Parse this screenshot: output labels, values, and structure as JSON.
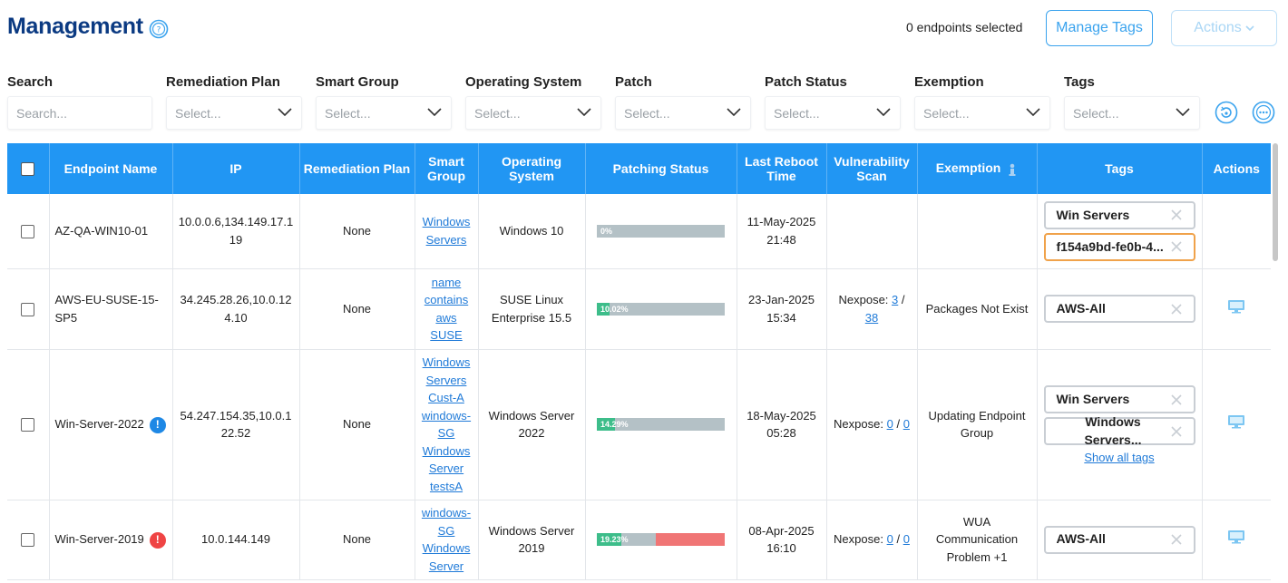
{
  "header": {
    "title": "Management",
    "selected_count": "0 endpoints selected",
    "manage_tags": "Manage Tags",
    "actions": "Actions"
  },
  "filters": [
    {
      "label": "Search",
      "placeholder": "Search..."
    },
    {
      "label": "Remediation Plan",
      "placeholder": "Select..."
    },
    {
      "label": "Smart Group",
      "placeholder": "Select..."
    },
    {
      "label": "Operating System",
      "placeholder": "Select..."
    },
    {
      "label": "Patch",
      "placeholder": "Select..."
    },
    {
      "label": "Patch Status",
      "placeholder": "Select..."
    },
    {
      "label": "Exemption",
      "placeholder": "Select..."
    },
    {
      "label": "Tags",
      "placeholder": "Select..."
    }
  ],
  "table": {
    "headers": {
      "endpoint_name": "Endpoint Name",
      "ip": "IP",
      "remediation_plan": "Remediation Plan",
      "smart_group": "Smart Group",
      "operating_system": "Operating System",
      "patching_status": "Patching Status",
      "last_reboot": "Last Reboot Time",
      "vuln_scan": "Vulnerability Scan",
      "exemption": "Exemption",
      "tags": "Tags",
      "actions": "Actions"
    },
    "rows": [
      {
        "endpoint": "AZ-QA-WIN10-01",
        "ip": "10.0.0.6,134.149.17.1 19",
        "remediation": "None",
        "smart_group": [
          "Windows Servers"
        ],
        "os": "Windows 10",
        "patch_pct": 0,
        "patch_fail_pct": 0,
        "patch_label": "0%",
        "reboot": "11-May-2025 21:48",
        "scan_label": "",
        "scan_a": "",
        "scan_sep": "",
        "scan_b": "",
        "exemption": "",
        "tags": [
          "Win Servers",
          "f154a9bd-fe0b-4..."
        ],
        "show_all_tags": ""
      },
      {
        "endpoint": "AWS-EU-SUSE-15-SP5",
        "ip": "34.245.28.26,10.0.12 4.10",
        "remediation": "None",
        "smart_group": [
          "name contains aws SUSE"
        ],
        "os": "SUSE Linux Enterprise 15.5",
        "patch_pct": 10.02,
        "patch_fail_pct": 0,
        "patch_label": "10.02%",
        "reboot": "23-Jan-2025 15:34",
        "scan_label": "Nexpose:",
        "scan_a": "3",
        "scan_sep": "/",
        "scan_b": "38",
        "exemption": "Packages Not Exist",
        "tags": [
          "AWS-All"
        ],
        "show_all_tags": ""
      },
      {
        "endpoint": "Win-Server-2022",
        "badge": "!",
        "ip": "54.247.154.35,10.0.1 22.52",
        "remediation": "None",
        "smart_group": [
          "Windows Servers",
          "Cust-A",
          "windows-SG",
          "Windows Server testsA"
        ],
        "os": "Windows Server 2022",
        "patch_pct": 14.29,
        "patch_fail_pct": 0,
        "patch_label": "14.29%",
        "reboot": "18-May-2025 05:28",
        "scan_label": "Nexpose:",
        "scan_a": "0",
        "scan_sep": "/",
        "scan_b": "0",
        "exemption": "Updating Endpoint Group",
        "tags": [
          "Win Servers",
          "Windows Servers..."
        ],
        "show_all_tags": "Show all tags"
      },
      {
        "endpoint": "Win-Server-2019",
        "badge": "!",
        "ip": "10.0.144.149",
        "remediation": "None",
        "smart_group": [
          "windows-SG",
          "Windows Server"
        ],
        "os": "Windows Server 2019",
        "patch_pct": 19.23,
        "patch_fail_pct": 54,
        "patch_label": "19.23%",
        "reboot": "08-Apr-2025 16:10",
        "scan_label": "Nexpose:",
        "scan_a": "0",
        "scan_sep": "/",
        "scan_b": "0",
        "exemption": "WUA Communication Problem +1",
        "tags": [
          "AWS-All"
        ],
        "show_all_tags": ""
      }
    ]
  },
  "colors": {
    "title": "#0b3a82",
    "header_bg": "#2196f3",
    "accent": "#3aa3ee",
    "patched": "#3dbd8a",
    "failed": "#f07575",
    "pending": "#b4c1c6"
  }
}
